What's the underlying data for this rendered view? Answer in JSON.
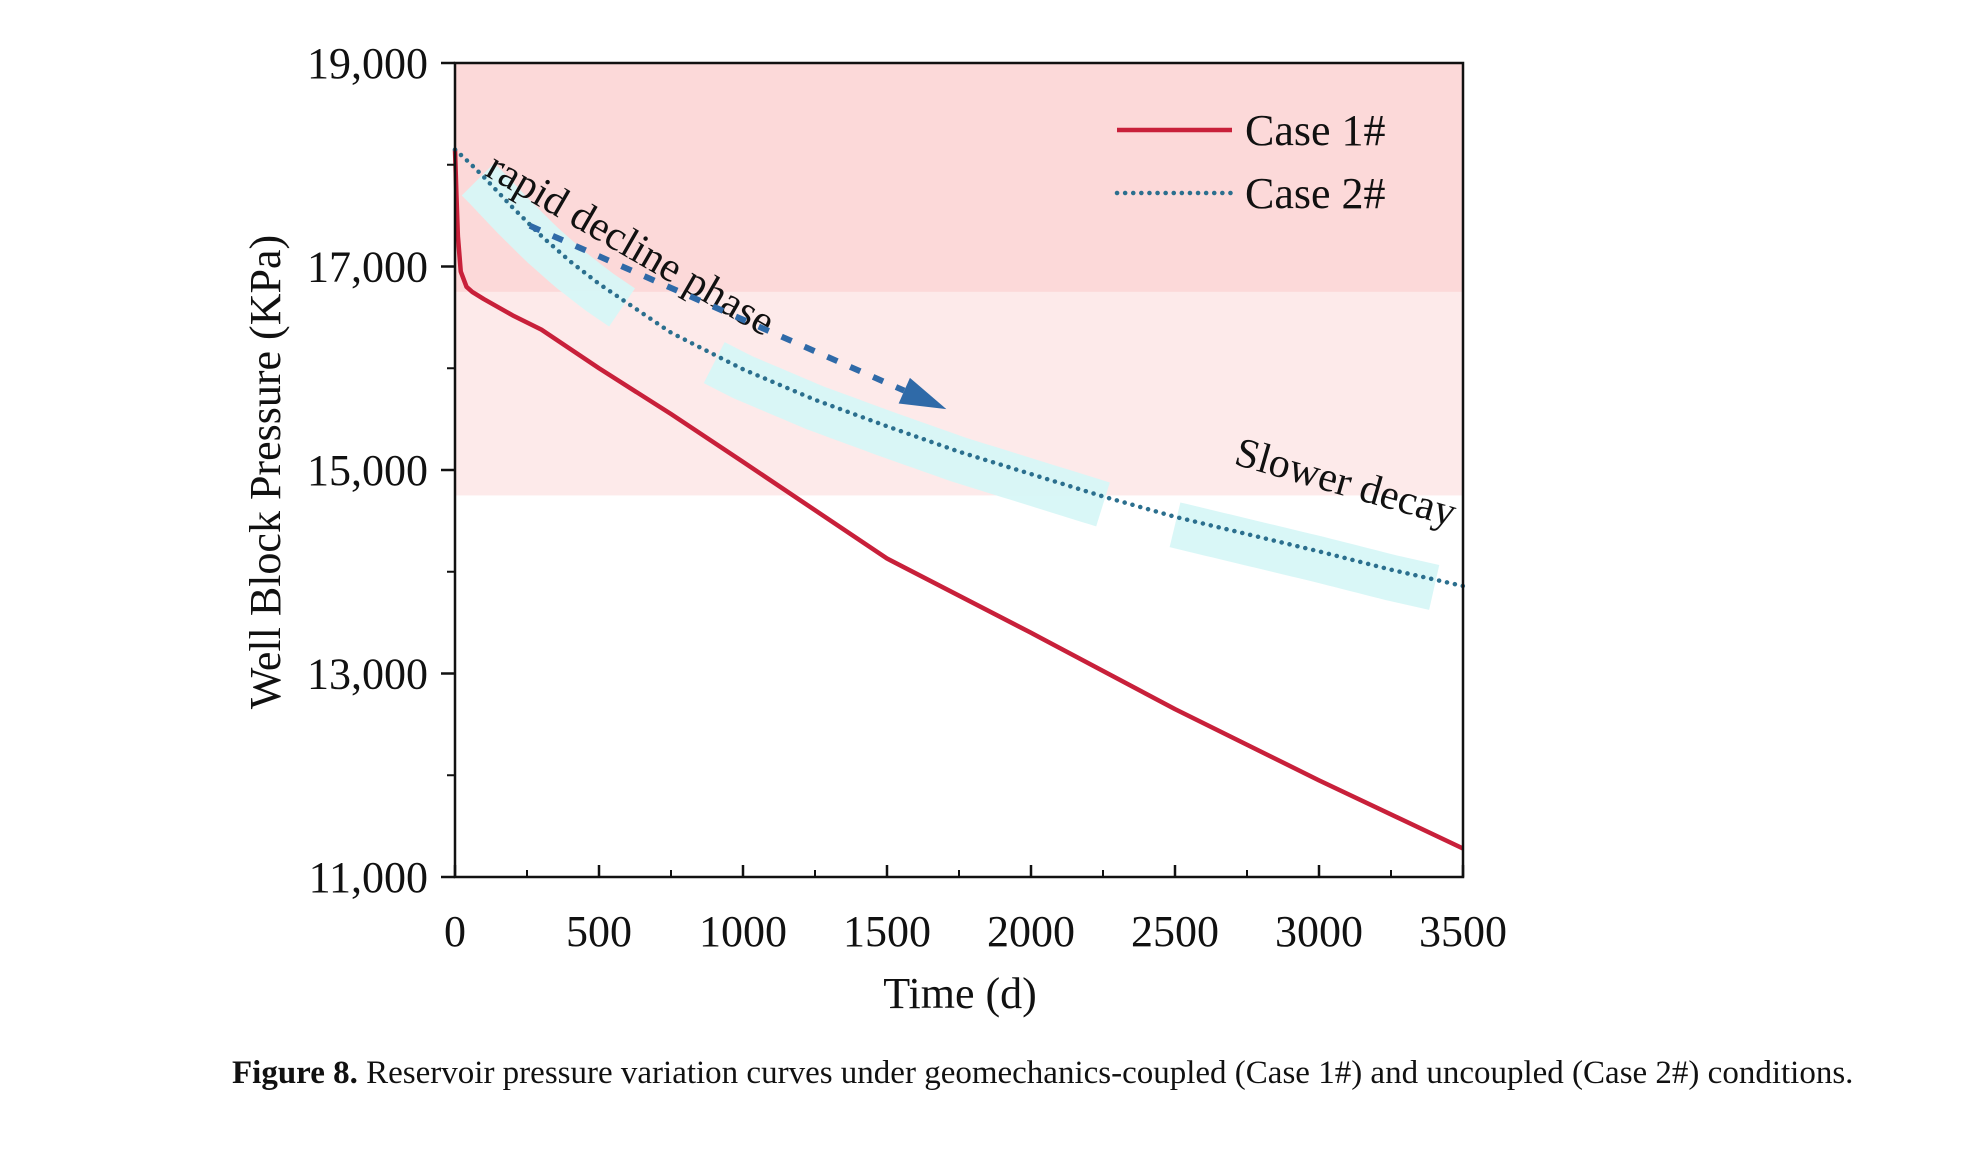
{
  "chart_data": {
    "type": "line",
    "xlabel": "Time (d)",
    "ylabel": "Well Block Pressure (KPa)",
    "xlim": [
      0,
      3500
    ],
    "ylim": [
      11000,
      19000
    ],
    "x_ticks": [
      0,
      500,
      1000,
      1500,
      2000,
      2500,
      3000,
      3500
    ],
    "x_tick_labels": [
      "0",
      "500",
      "1000",
      "1500",
      "2000",
      "2500",
      "3000",
      "3500"
    ],
    "y_ticks": [
      11000,
      13000,
      15000,
      17000,
      19000
    ],
    "y_tick_labels": [
      "11,000",
      "13,000",
      "15,000",
      "17,000",
      "19,000"
    ],
    "legend_position": "top-right",
    "bands": [
      {
        "y_from": 16750,
        "y_to": 19000,
        "color": "#fcd9d9"
      },
      {
        "y_from": 14750,
        "y_to": 16750,
        "color": "#fdeaea"
      }
    ],
    "series": [
      {
        "name": "Case 1#",
        "style": "solid",
        "color": "#c8203a",
        "x": [
          0,
          5,
          10,
          20,
          40,
          60,
          100,
          200,
          300,
          500,
          750,
          1000,
          1500,
          2000,
          2500,
          3000,
          3500
        ],
        "y": [
          18150,
          17700,
          17300,
          16950,
          16800,
          16750,
          16680,
          16520,
          16380,
          16000,
          15550,
          15080,
          14130,
          13400,
          12650,
          11950,
          11280
        ]
      },
      {
        "name": "Case 2#",
        "style": "dotted",
        "color": "#2b6f8e",
        "x": [
          0,
          50,
          100,
          200,
          300,
          400,
          500,
          750,
          1000,
          1250,
          1500,
          1750,
          2000,
          2250,
          2500,
          2750,
          3000,
          3250,
          3500
        ],
        "y": [
          18150,
          18020,
          17880,
          17580,
          17300,
          17050,
          16830,
          16350,
          15990,
          15690,
          15430,
          15180,
          14960,
          14740,
          14540,
          14370,
          14200,
          14020,
          13860
        ]
      }
    ],
    "annotations": [
      {
        "text": "rapid decline phase",
        "x": 1420,
        "y": 17450
      },
      {
        "text": "Slower decay",
        "x": 3080,
        "y": 14850
      }
    ],
    "highlight_color": "#d7f7f7",
    "arrow_color": "#2f6aa8"
  },
  "caption": {
    "label": "Figure 8.",
    "text": " Reservoir pressure variation curves under geomechanics-coupled (Case 1#) and uncoupled (Case 2#) conditions."
  }
}
